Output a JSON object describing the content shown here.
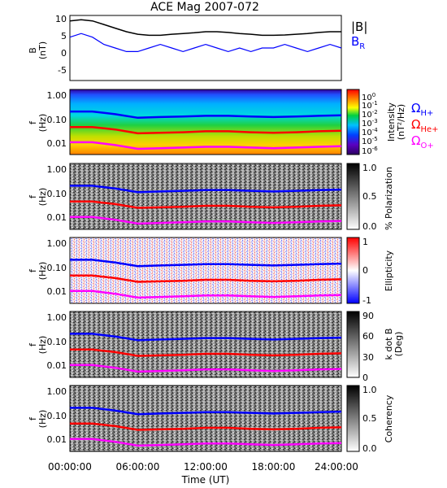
{
  "figure": {
    "title": "ACE Mag 2007-072",
    "xlabel": "Time (UT)",
    "time_ticks": [
      "00:00:00",
      "06:00:00",
      "12:00:00",
      "18:00:00",
      "24:00:00"
    ],
    "freq_ticks": [
      "1.00",
      "0.10",
      "0.01"
    ],
    "freq_axis_label": "f",
    "freq_axis_unit": "(Hz)",
    "b_axis_label": "B",
    "b_axis_unit": "(nT)",
    "b_ticks": [
      "10",
      "5",
      "0",
      "-5"
    ],
    "legend": {
      "B": "|B|",
      "BR": "B",
      "BR_sub": "R",
      "H": "Ω",
      "H_sub": "H+",
      "He": "Ω",
      "He_sub": "He+",
      "O": "Ω",
      "O_sub": "O+"
    },
    "colorbars": [
      {
        "label": "Intensity",
        "unit": "(nT²/Hz)",
        "ticks": [
          {
            "base": "10",
            "exp": "0"
          },
          {
            "base": "10",
            "exp": "-1"
          },
          {
            "base": "10",
            "exp": "-2"
          },
          {
            "base": "10",
            "exp": "-3"
          },
          {
            "base": "10",
            "exp": "-4"
          },
          {
            "base": "10",
            "exp": "-5"
          },
          {
            "base": "10",
            "exp": "-6"
          }
        ]
      },
      {
        "label": "% Polarization",
        "ticks": [
          "1.0",
          "0.5",
          "0.0"
        ]
      },
      {
        "label": "Ellipticity",
        "ticks": [
          "1",
          "0",
          "-1"
        ]
      },
      {
        "label": "k dot B",
        "unit": "(Deg)",
        "ticks": [
          "90",
          "60",
          "30",
          "0"
        ]
      },
      {
        "label": "Coherency",
        "ticks": [
          "1.0",
          "0.5",
          "0.0"
        ]
      }
    ],
    "colors": {
      "B": "#000000",
      "BR": "#0000ff",
      "H": "#0000ff",
      "He": "#ff0000",
      "O": "#ff00ff"
    }
  },
  "chart_data": [
    {
      "type": "line",
      "ylabel": "B (nT)",
      "ylim": [
        -7,
        11
      ],
      "x_range_hours": [
        0,
        24
      ],
      "series": [
        {
          "name": "|B|",
          "x": [
            0,
            1,
            2,
            3,
            4,
            5,
            6,
            7,
            8,
            9,
            10,
            11,
            12,
            13,
            14,
            15,
            16,
            17,
            18,
            19,
            20,
            21,
            22,
            23,
            24
          ],
          "values": [
            9.5,
            9.8,
            9.5,
            8.5,
            7.5,
            6.5,
            5.8,
            5.5,
            5.5,
            5.8,
            6.0,
            6.2,
            6.5,
            6.5,
            6.3,
            6.0,
            5.8,
            5.5,
            5.5,
            5.6,
            5.8,
            6.0,
            6.3,
            6.5,
            6.5
          ]
        },
        {
          "name": "BR",
          "x": [
            0,
            1,
            2,
            3,
            4,
            5,
            6,
            7,
            8,
            9,
            10,
            11,
            12,
            13,
            14,
            15,
            16,
            17,
            18,
            19,
            20,
            21,
            22,
            23,
            24
          ],
          "values": [
            5,
            6,
            5,
            3,
            2,
            1,
            1,
            2,
            3,
            2,
            1,
            2,
            3,
            2,
            1,
            2,
            1,
            2,
            2,
            3,
            2,
            1,
            2,
            3,
            2
          ]
        }
      ]
    },
    {
      "type": "line",
      "ylabel": "f (Hz)",
      "y_scale": "log",
      "ylim": [
        0.003,
        1.0
      ],
      "series": [
        {
          "name": "ΩH+",
          "x": [
            0,
            2,
            4,
            6,
            8,
            10,
            12,
            14,
            16,
            18,
            20,
            22,
            24
          ],
          "values": [
            0.14,
            0.14,
            0.11,
            0.08,
            0.085,
            0.09,
            0.095,
            0.095,
            0.09,
            0.085,
            0.09,
            0.095,
            0.1
          ]
        },
        {
          "name": "ΩHe+",
          "x": [
            0,
            2,
            4,
            6,
            8,
            10,
            12,
            14,
            16,
            18,
            20,
            22,
            24
          ],
          "values": [
            0.035,
            0.035,
            0.028,
            0.02,
            0.021,
            0.022,
            0.024,
            0.024,
            0.022,
            0.021,
            0.022,
            0.024,
            0.025
          ]
        },
        {
          "name": "ΩO+",
          "x": [
            0,
            2,
            4,
            6,
            8,
            10,
            12,
            14,
            16,
            18,
            20,
            22,
            24
          ],
          "values": [
            0.009,
            0.009,
            0.007,
            0.005,
            0.0053,
            0.0056,
            0.006,
            0.006,
            0.0056,
            0.0053,
            0.0056,
            0.006,
            0.0063
          ]
        }
      ]
    }
  ]
}
